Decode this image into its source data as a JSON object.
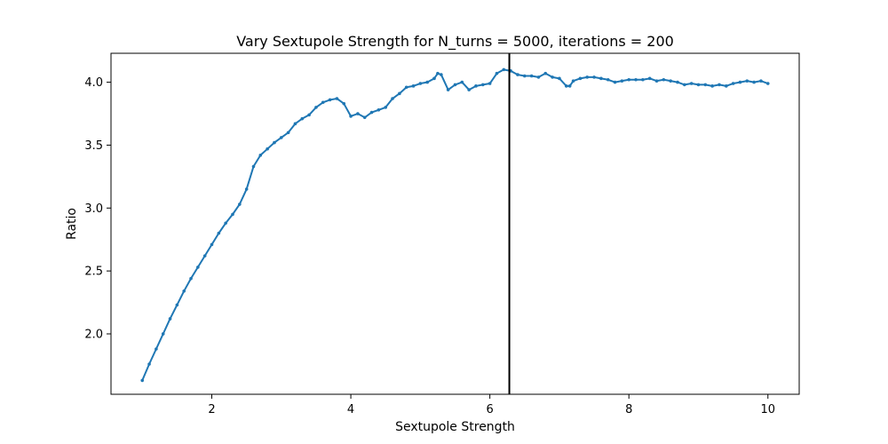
{
  "chart_data": {
    "type": "line",
    "title": "Vary Sextupole Strength for N_turns = 5000, iterations = 200",
    "xlabel": "Sextupole Strength",
    "ylabel": "Ratio",
    "xlim": [
      0.55,
      10.45
    ],
    "ylim": [
      1.52,
      4.23
    ],
    "xticks": [
      2,
      4,
      6,
      8,
      10
    ],
    "yticks": [
      2.0,
      2.5,
      3.0,
      3.5,
      4.0
    ],
    "vline_x": 6.28,
    "grid": false,
    "series": [
      {
        "color": "#1f77b4",
        "marker": "dot",
        "x": [
          1.0,
          1.1,
          1.2,
          1.3,
          1.4,
          1.5,
          1.6,
          1.7,
          1.8,
          1.9,
          2.0,
          2.1,
          2.2,
          2.3,
          2.4,
          2.5,
          2.6,
          2.7,
          2.8,
          2.9,
          3.0,
          3.1,
          3.2,
          3.3,
          3.4,
          3.5,
          3.6,
          3.7,
          3.8,
          3.9,
          4.0,
          4.1,
          4.2,
          4.3,
          4.4,
          4.5,
          4.6,
          4.7,
          4.8,
          4.9,
          5.0,
          5.1,
          5.2,
          5.25,
          5.3,
          5.4,
          5.5,
          5.6,
          5.7,
          5.8,
          5.9,
          6.0,
          6.1,
          6.2,
          6.3,
          6.4,
          6.5,
          6.6,
          6.7,
          6.8,
          6.9,
          7.0,
          7.1,
          7.15,
          7.2,
          7.3,
          7.4,
          7.5,
          7.6,
          7.7,
          7.8,
          7.9,
          8.0,
          8.1,
          8.2,
          8.3,
          8.4,
          8.5,
          8.6,
          8.7,
          8.8,
          8.9,
          9.0,
          9.1,
          9.2,
          9.3,
          9.4,
          9.5,
          9.6,
          9.7,
          9.8,
          9.9,
          10.0
        ],
        "y": [
          1.63,
          1.76,
          1.88,
          2.0,
          2.12,
          2.23,
          2.34,
          2.44,
          2.53,
          2.62,
          2.71,
          2.8,
          2.88,
          2.95,
          3.03,
          3.15,
          3.33,
          3.42,
          3.47,
          3.52,
          3.56,
          3.6,
          3.67,
          3.71,
          3.74,
          3.8,
          3.84,
          3.86,
          3.87,
          3.83,
          3.73,
          3.75,
          3.72,
          3.76,
          3.78,
          3.8,
          3.87,
          3.91,
          3.96,
          3.97,
          3.99,
          4.0,
          4.03,
          4.07,
          4.06,
          3.94,
          3.98,
          4.0,
          3.94,
          3.97,
          3.98,
          3.99,
          4.07,
          4.1,
          4.09,
          4.06,
          4.05,
          4.05,
          4.04,
          4.07,
          4.04,
          4.03,
          3.97,
          3.97,
          4.01,
          4.03,
          4.04,
          4.04,
          4.03,
          4.02,
          4.0,
          4.01,
          4.02,
          4.02,
          4.02,
          4.03,
          4.01,
          4.02,
          4.01,
          4.0,
          3.98,
          3.99,
          3.98,
          3.98,
          3.97,
          3.98,
          3.97,
          3.99,
          4.0,
          4.01,
          4.0,
          4.01,
          3.99
        ]
      }
    ]
  }
}
